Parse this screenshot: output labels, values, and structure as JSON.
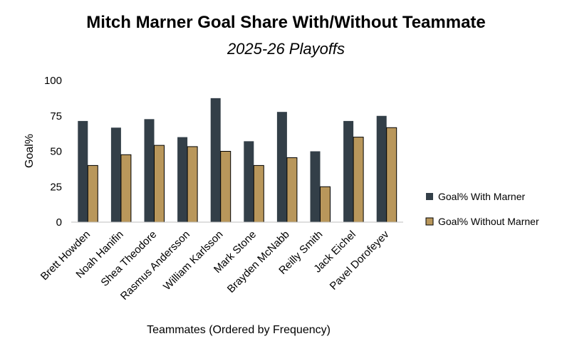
{
  "chart_data": {
    "type": "bar",
    "title": "Mitch Marner Goal Share With/Without Teammate",
    "subtitle": "2025-26 Playoffs",
    "xlabel": "Teammates (Ordered by Frequency)",
    "ylabel": "Goal%",
    "ylim": [
      0,
      100
    ],
    "yticks": [
      0,
      25,
      50,
      75,
      100
    ],
    "categories": [
      "Brett Howden",
      "Noah Hanifin",
      "Shea Theodore",
      "Rasmus Andersson",
      "William Karlsson",
      "Mark Stone",
      "Brayden McNabb",
      "Reilly Smith",
      "Jack Eichel",
      "Pavel Dorofeyev"
    ],
    "series": [
      {
        "name": "Goal% With Marner",
        "color": "#333f48",
        "values": [
          71.4,
          66.7,
          72.7,
          60.0,
          87.5,
          57.1,
          77.8,
          50.0,
          71.4,
          75.0
        ]
      },
      {
        "name": "Goal% Without Marner",
        "color": "#b9975b",
        "values": [
          40.0,
          47.6,
          54.2,
          53.3,
          50.0,
          40.0,
          45.5,
          25.0,
          60.0,
          66.7
        ]
      }
    ],
    "grid": false,
    "legend_position": "right"
  }
}
